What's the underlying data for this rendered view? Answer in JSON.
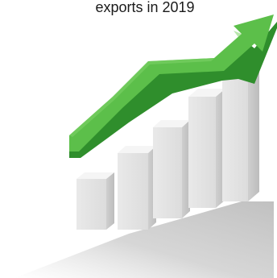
{
  "caption": {
    "text": "exports in 2019"
  },
  "illustration": {
    "icon": "growth-bar-chart-with-arrow",
    "bar_count": 5,
    "colors": {
      "arrow_top": "#5cbf4a",
      "arrow_side": "#2f8e2c",
      "bar_front": "#e6e6e6",
      "bar_side": "#c4c4c4",
      "bar_top": "#f6f6f6",
      "shadow": "#bdbdbd"
    }
  }
}
